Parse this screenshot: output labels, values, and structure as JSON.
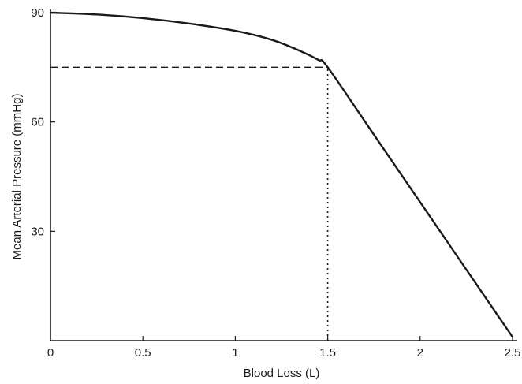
{
  "chart_data": {
    "type": "line",
    "title": "",
    "xlabel": "Blood Loss (L)",
    "ylabel": "Mean Arterial Pressure (mmHg)",
    "xlim": [
      0,
      2.5
    ],
    "ylim": [
      0,
      90
    ],
    "x_ticks": [
      {
        "value": 0,
        "label": "0"
      },
      {
        "value": 0.5,
        "label": "0.5"
      },
      {
        "value": 1,
        "label": "1"
      },
      {
        "value": 1.5,
        "label": "1.5"
      },
      {
        "value": 2,
        "label": "2"
      },
      {
        "value": 2.5,
        "label": "2.5"
      }
    ],
    "y_ticks": [
      {
        "value": 30,
        "label": "30"
      },
      {
        "value": 60,
        "label": "60"
      },
      {
        "value": 90,
        "label": "90"
      }
    ],
    "grid": false,
    "legend": "none",
    "series": [
      {
        "x": [
          0,
          0.25,
          0.5,
          0.75,
          1.0,
          1.2,
          1.35,
          1.45,
          1.5,
          1.75,
          2.0,
          2.25,
          2.5
        ],
        "y": [
          90,
          89.5,
          88.5,
          87,
          85,
          82.5,
          79.5,
          77,
          75,
          56.5,
          38,
          19.5,
          1
        ],
        "color": "#1a1a1a"
      }
    ],
    "reference_lines": {
      "horizontal": {
        "y": 75,
        "x_from": 0,
        "x_to": 1.5,
        "style": "dashed"
      },
      "vertical": {
        "x": 1.5,
        "y_from": 0,
        "y_to": 75,
        "style": "dotted"
      }
    }
  }
}
